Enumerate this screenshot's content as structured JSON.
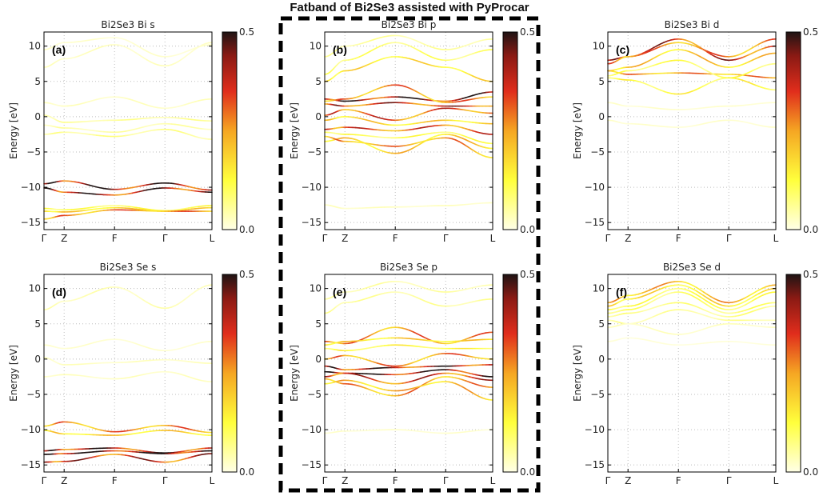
{
  "figure_title": "Fatband of Bi2Se3 assisted with PyProcar",
  "chart_data": [
    {
      "id": "a",
      "type": "line",
      "panel_label": "(a)",
      "title": "Bi2Se3 Bi s",
      "ylabel": "Energy [eV]",
      "ylim": [
        -16,
        12
      ],
      "yticks": [
        -15,
        -10,
        -5,
        0,
        5,
        10
      ],
      "kpoints": [
        "Γ",
        "Z",
        "F",
        "Γ",
        "L"
      ],
      "kpositions": [
        0,
        0.12,
        0.42,
        0.72,
        1.0
      ],
      "colorbar": {
        "min": 0.0,
        "max": 0.5,
        "cmap": "hot_r"
      },
      "series": [
        {
          "y": [
            7.0,
            8.2,
            10.2,
            7.2,
            10.5
          ],
          "w": 0.03
        },
        {
          "y": [
            9.5,
            10.5,
            11.2,
            8.5,
            10.2
          ],
          "w": 0.02
        },
        {
          "y": [
            2.0,
            1.5,
            2.8,
            1.2,
            2.5
          ],
          "w": 0.03
        },
        {
          "y": [
            0.2,
            -0.8,
            -0.5,
            -0.1,
            -0.6
          ],
          "w": 0.06
        },
        {
          "y": [
            -1.2,
            -1.6,
            -2.2,
            -1.0,
            -1.8
          ],
          "w": 0.05
        },
        {
          "y": [
            -2.5,
            -2.2,
            -2.8,
            -1.8,
            -3.2
          ],
          "w": 0.07
        },
        {
          "y": [
            -9.5,
            -9.1,
            -10.3,
            -9.4,
            -10.4
          ],
          "w": 0.48
        },
        {
          "y": [
            -10.1,
            -10.7,
            -11.1,
            -10.1,
            -10.7
          ],
          "w": 0.45
        },
        {
          "y": [
            -13.0,
            -13.2,
            -12.6,
            -13.3,
            -12.6
          ],
          "w": 0.12
        },
        {
          "y": [
            -13.4,
            -13.5,
            -12.9,
            -13.4,
            -12.9
          ],
          "w": 0.2
        },
        {
          "y": [
            -14.5,
            -14.0,
            -13.2,
            -13.4,
            -13.4
          ],
          "w": 0.3
        }
      ]
    },
    {
      "id": "b",
      "type": "line",
      "panel_label": "(b)",
      "title": "Bi2Se3 Bi p",
      "ylabel": "Energy [eV]",
      "ylim": [
        -16,
        12
      ],
      "yticks": [
        -15,
        -10,
        -5,
        0,
        5,
        10
      ],
      "kpoints": [
        "Γ",
        "Z",
        "F",
        "Γ",
        "L"
      ],
      "kpositions": [
        0,
        0.12,
        0.42,
        0.72,
        1.0
      ],
      "colorbar": {
        "min": 0.0,
        "max": 0.5,
        "cmap": "hot_r"
      },
      "series": [
        {
          "y": [
            8.5,
            10.0,
            11.5,
            9.5,
            11.0
          ],
          "w": 0.06
        },
        {
          "y": [
            6.0,
            8.0,
            10.5,
            8.0,
            9.5
          ],
          "w": 0.1
        },
        {
          "y": [
            5.0,
            6.5,
            8.5,
            7.0,
            5.0
          ],
          "w": 0.18
        },
        {
          "y": [
            2.5,
            2.2,
            2.8,
            2.2,
            3.5
          ],
          "w": 0.48
        },
        {
          "y": [
            2.2,
            2.5,
            4.5,
            2.0,
            2.8
          ],
          "w": 0.3
        },
        {
          "y": [
            1.8,
            1.5,
            2.0,
            1.5,
            1.5
          ],
          "w": 0.4
        },
        {
          "y": [
            0.2,
            1.0,
            -0.5,
            1.2,
            0.5
          ],
          "w": 0.35
        },
        {
          "y": [
            -0.5,
            0.0,
            -1.2,
            -0.5,
            -1.0
          ],
          "w": 0.2
        },
        {
          "y": [
            -1.8,
            -1.5,
            -2.0,
            -1.2,
            -2.5
          ],
          "w": 0.35
        },
        {
          "y": [
            -2.2,
            -2.5,
            -3.0,
            -2.2,
            -3.8
          ],
          "w": 0.12
        },
        {
          "y": [
            -3.5,
            -3.0,
            -5.2,
            -2.5,
            -4.5
          ],
          "w": 0.22
        },
        {
          "y": [
            -2.8,
            -3.5,
            -4.2,
            -3.0,
            -5.8
          ],
          "w": 0.28
        },
        {
          "y": [
            -12.5,
            -13.0,
            -12.8,
            -12.6,
            -12.2
          ],
          "w": 0.03
        }
      ]
    },
    {
      "id": "c",
      "type": "line",
      "panel_label": "(c)",
      "title": "Bi2Se3 Bi d",
      "ylabel": "Energy [eV]",
      "ylim": [
        -16,
        12
      ],
      "yticks": [
        -15,
        -10,
        -5,
        0,
        5,
        10
      ],
      "kpoints": [
        "Γ",
        "Z",
        "F",
        "Γ",
        "L"
      ],
      "kpositions": [
        0,
        0.12,
        0.42,
        0.72,
        1.0
      ],
      "colorbar": {
        "min": 0.0,
        "max": 0.5,
        "cmap": "hot_r"
      },
      "series": [
        {
          "y": [
            8.0,
            8.5,
            11.0,
            8.0,
            10.0
          ],
          "w": 0.4
        },
        {
          "y": [
            7.5,
            8.5,
            10.5,
            8.5,
            11.0
          ],
          "w": 0.3
        },
        {
          "y": [
            6.5,
            7.0,
            9.5,
            7.0,
            9.0
          ],
          "w": 0.22
        },
        {
          "y": [
            6.5,
            6.0,
            6.2,
            6.0,
            5.5
          ],
          "w": 0.28
        },
        {
          "y": [
            5.5,
            5.2,
            3.2,
            5.5,
            3.8
          ],
          "w": 0.14
        },
        {
          "y": [
            5.8,
            6.5,
            8.0,
            5.5,
            7.5
          ],
          "w": 0.12
        },
        {
          "y": [
            2.0,
            1.5,
            1.0,
            1.5,
            2.0
          ],
          "w": 0.02
        },
        {
          "y": [
            -0.5,
            -1.0,
            -1.5,
            -0.5,
            -1.5
          ],
          "w": 0.02
        }
      ]
    },
    {
      "id": "d",
      "type": "line",
      "panel_label": "(d)",
      "title": "Bi2Se3 Se s",
      "ylabel": "Energy [eV]",
      "ylim": [
        -16,
        12
      ],
      "yticks": [
        -15,
        -10,
        -5,
        0,
        5,
        10
      ],
      "kpoints": [
        "Γ",
        "Z",
        "F",
        "Γ",
        "L"
      ],
      "kpositions": [
        0,
        0.12,
        0.42,
        0.72,
        1.0
      ],
      "colorbar": {
        "min": 0.0,
        "max": 0.5,
        "cmap": "hot_r"
      },
      "series": [
        {
          "y": [
            7.0,
            8.2,
            10.2,
            7.2,
            10.5
          ],
          "w": 0.04
        },
        {
          "y": [
            2.0,
            1.5,
            2.8,
            1.2,
            2.5
          ],
          "w": 0.02
        },
        {
          "y": [
            0.2,
            -0.8,
            -0.5,
            -0.1,
            -0.6
          ],
          "w": 0.03
        },
        {
          "y": [
            -2.5,
            -2.2,
            -2.8,
            -1.8,
            -3.2
          ],
          "w": 0.03
        },
        {
          "y": [
            -9.5,
            -8.9,
            -10.3,
            -9.4,
            -10.4
          ],
          "w": 0.3
        },
        {
          "y": [
            -10.1,
            -10.6,
            -10.8,
            -10.1,
            -10.8
          ],
          "w": 0.2
        },
        {
          "y": [
            -13.0,
            -12.8,
            -12.6,
            -13.3,
            -12.6
          ],
          "w": 0.45
        },
        {
          "y": [
            -13.5,
            -13.4,
            -13.0,
            -13.4,
            -13.0
          ],
          "w": 0.5
        },
        {
          "y": [
            -14.6,
            -14.5,
            -13.5,
            -14.6,
            -13.4
          ],
          "w": 0.4
        }
      ]
    },
    {
      "id": "e",
      "type": "line",
      "panel_label": "(e)",
      "title": "Bi2Se3 Se p",
      "ylabel": "Energy [eV]",
      "ylim": [
        -16,
        12
      ],
      "yticks": [
        -15,
        -10,
        -5,
        0,
        5,
        10
      ],
      "kpoints": [
        "Γ",
        "Z",
        "F",
        "Γ",
        "L"
      ],
      "kpositions": [
        0,
        0.12,
        0.42,
        0.72,
        1.0
      ],
      "colorbar": {
        "min": 0.0,
        "max": 0.5,
        "cmap": "hot_r"
      },
      "series": [
        {
          "y": [
            8.5,
            9.5,
            11.0,
            9.5,
            10.5
          ],
          "w": 0.05
        },
        {
          "y": [
            6.5,
            8.0,
            9.5,
            7.5,
            8.5
          ],
          "w": 0.06
        },
        {
          "y": [
            2.5,
            2.2,
            4.5,
            2.2,
            3.8
          ],
          "w": 0.3
        },
        {
          "y": [
            2.0,
            2.5,
            3.0,
            2.5,
            2.8
          ],
          "w": 0.2
        },
        {
          "y": [
            1.5,
            1.2,
            2.0,
            1.5,
            1.5
          ],
          "w": 0.14
        },
        {
          "y": [
            0.0,
            0.5,
            -1.0,
            0.8,
            0.0
          ],
          "w": 0.3
        },
        {
          "y": [
            -1.0,
            -1.5,
            -1.2,
            -1.0,
            -0.8
          ],
          "w": 0.45
        },
        {
          "y": [
            -1.8,
            -2.0,
            -2.2,
            -1.5,
            -2.5
          ],
          "w": 0.5
        },
        {
          "y": [
            -2.5,
            -2.0,
            -3.5,
            -2.0,
            -3.0
          ],
          "w": 0.38
        },
        {
          "y": [
            -2.8,
            -3.5,
            -5.2,
            -2.5,
            -4.0
          ],
          "w": 0.28
        },
        {
          "y": [
            -3.5,
            -3.0,
            -4.5,
            -3.2,
            -5.8
          ],
          "w": 0.24
        },
        {
          "y": [
            -10.5,
            -10.2,
            -10.0,
            -10.5,
            -10.0
          ],
          "w": 0.02
        }
      ]
    },
    {
      "id": "f",
      "type": "line",
      "panel_label": "(f)",
      "title": "Bi2Se3 Se d",
      "ylabel": "Energy [eV]",
      "ylim": [
        -16,
        12
      ],
      "yticks": [
        -15,
        -10,
        -5,
        0,
        5,
        10
      ],
      "kpoints": [
        "Γ",
        "Z",
        "F",
        "Γ",
        "L"
      ],
      "kpositions": [
        0,
        0.12,
        0.42,
        0.72,
        1.0
      ],
      "colorbar": {
        "min": 0.0,
        "max": 0.5,
        "cmap": "hot_r"
      },
      "series": [
        {
          "y": [
            8.0,
            9.0,
            11.0,
            8.0,
            10.5
          ],
          "w": 0.25
        },
        {
          "y": [
            7.5,
            8.5,
            10.5,
            7.5,
            10.0
          ],
          "w": 0.18
        },
        {
          "y": [
            7.0,
            7.5,
            10.0,
            7.0,
            9.5
          ],
          "w": 0.12
        },
        {
          "y": [
            6.5,
            7.0,
            9.5,
            6.5,
            8.0
          ],
          "w": 0.1
        },
        {
          "y": [
            6.0,
            6.5,
            8.0,
            6.0,
            7.5
          ],
          "w": 0.08
        },
        {
          "y": [
            5.5,
            5.0,
            7.0,
            5.5,
            5.5
          ],
          "w": 0.06
        },
        {
          "y": [
            4.5,
            5.0,
            3.5,
            5.0,
            4.5
          ],
          "w": 0.03
        },
        {
          "y": [
            2.5,
            3.0,
            2.0,
            2.5,
            2.0
          ],
          "w": 0.01
        }
      ]
    }
  ]
}
